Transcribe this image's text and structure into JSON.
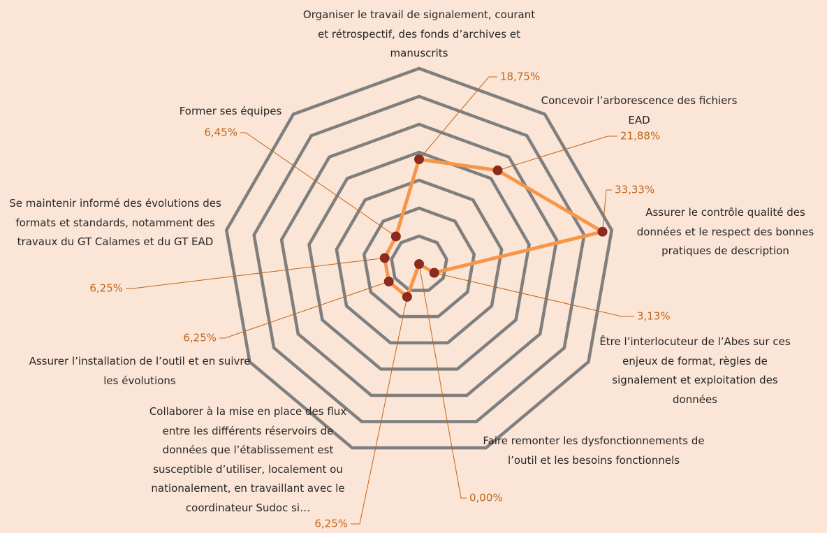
{
  "chart_data": {
    "type": "radar",
    "categories": [
      "Organiser le travail de signalement, courant et rétrospectif, des fonds d’archives et manuscrits",
      "Concevoir l’arborescence des fichiers EAD",
      "Assurer le contrôle qualité des données et le respect des bonnes pratiques de description",
      "Être l’interlocuteur de l’Abes sur ces enjeux de format, règles de signalement et exploitation des données",
      "Faire remonter les dysfonctionnements de l’outil et les besoins fonctionnels",
      "Collaborer à la mise en place des flux entre les différents réservoirs de données que l’établissement est susceptible d’utiliser, localement ou nationalement, en travaillant avec le coordinateur Sudoc si…",
      "Assurer l’installation de l’outil et en suivre les évolutions",
      "Se maintenir informé des évolutions des formats et standards, notamment des travaux du GT Calames et du GT EAD",
      "Former ses équipes"
    ],
    "values": [
      18.75,
      21.88,
      33.33,
      3.13,
      0,
      6.25,
      6.25,
      6.25,
      6.45
    ],
    "value_labels": [
      "18,75%",
      "21,88%",
      "33,33%",
      "3,13%",
      "0,00%",
      "6,25%",
      "6,25%",
      "6,25%",
      "6,45%"
    ],
    "color": "#f79646",
    "marker_color": "#8b2a1e",
    "label_color": "#c0651b",
    "grid_color": "#7f7f7f",
    "ylim": [
      0,
      35
    ],
    "yticks": [
      0,
      5,
      10,
      15,
      20,
      25,
      30,
      35
    ],
    "grid": true
  }
}
